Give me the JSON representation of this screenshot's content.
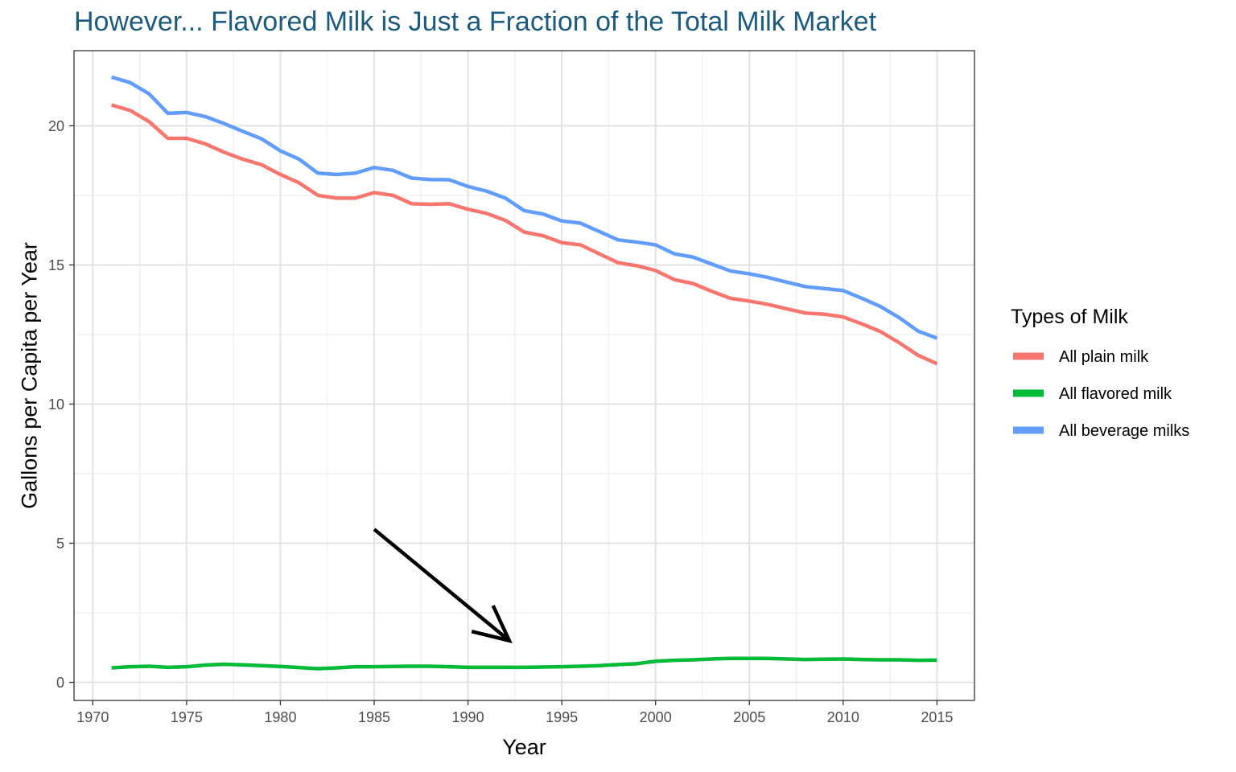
{
  "chart_data": {
    "type": "line",
    "title": "However... Flavored Milk is Just a Fraction of the Total Milk Market",
    "xlabel": "Year",
    "ylabel": "Gallons per Capita per Year",
    "xlim": [
      1969.0,
      2017.0
    ],
    "ylim": [
      -0.65,
      22.7
    ],
    "x_ticks": [
      1970,
      1975,
      1980,
      1985,
      1990,
      1995,
      2000,
      2005,
      2010,
      2015
    ],
    "x_tick_labels": [
      "1970",
      "1975",
      "1980",
      "1985",
      "1990",
      "1995",
      "2000",
      "2005",
      "2010",
      "2015"
    ],
    "y_ticks": [
      0,
      5,
      10,
      15,
      20
    ],
    "y_tick_labels": [
      "0",
      "5",
      "10",
      "15",
      "20"
    ],
    "grid": true,
    "legend": {
      "title": "Types of Milk",
      "position": "right"
    },
    "x": [
      1971,
      1972,
      1973,
      1974,
      1975,
      1976,
      1977,
      1978,
      1979,
      1980,
      1981,
      1982,
      1983,
      1984,
      1985,
      1986,
      1987,
      1988,
      1989,
      1990,
      1991,
      1992,
      1993,
      1994,
      1995,
      1996,
      1997,
      1998,
      1999,
      2000,
      2001,
      2002,
      2003,
      2004,
      2005,
      2006,
      2007,
      2008,
      2009,
      2010,
      2011,
      2012,
      2013,
      2014,
      2015
    ],
    "series": [
      {
        "name": "All plain milk",
        "color": "#F8766D",
        "values": [
          20.75,
          20.55,
          20.15,
          19.55,
          19.55,
          19.35,
          19.05,
          18.8,
          18.6,
          18.25,
          17.95,
          17.5,
          17.4,
          17.4,
          17.6,
          17.5,
          17.2,
          17.18,
          17.2,
          17.0,
          16.85,
          16.6,
          16.18,
          16.05,
          15.8,
          15.72,
          15.4,
          15.08,
          14.97,
          14.8,
          14.47,
          14.33,
          14.05,
          13.8,
          13.7,
          13.58,
          13.42,
          13.27,
          13.23,
          13.13,
          12.88,
          12.6,
          12.2,
          11.75,
          11.45
        ]
      },
      {
        "name": "All flavored milk",
        "color": "#00BA38",
        "values": [
          0.52,
          0.56,
          0.58,
          0.54,
          0.56,
          0.62,
          0.65,
          0.63,
          0.6,
          0.57,
          0.53,
          0.49,
          0.52,
          0.56,
          0.56,
          0.57,
          0.58,
          0.58,
          0.56,
          0.54,
          0.54,
          0.54,
          0.54,
          0.55,
          0.56,
          0.58,
          0.6,
          0.64,
          0.67,
          0.76,
          0.79,
          0.81,
          0.84,
          0.86,
          0.86,
          0.86,
          0.84,
          0.82,
          0.83,
          0.84,
          0.82,
          0.81,
          0.81,
          0.79,
          0.8
        ]
      },
      {
        "name": "All beverage milks",
        "color": "#619CFF",
        "values": [
          21.75,
          21.55,
          21.15,
          20.45,
          20.48,
          20.33,
          20.08,
          19.8,
          19.53,
          19.1,
          18.8,
          18.3,
          18.25,
          18.3,
          18.5,
          18.4,
          18.12,
          18.07,
          18.06,
          17.82,
          17.65,
          17.4,
          16.95,
          16.83,
          16.58,
          16.5,
          16.2,
          15.9,
          15.82,
          15.72,
          15.4,
          15.28,
          15.03,
          14.78,
          14.68,
          14.55,
          14.38,
          14.22,
          14.15,
          14.08,
          13.8,
          13.5,
          13.1,
          12.62,
          12.37
        ]
      }
    ],
    "annotation": {
      "type": "arrow",
      "from": [
        1985.0,
        5.5
      ],
      "to": [
        1992.2,
        1.5
      ]
    }
  }
}
